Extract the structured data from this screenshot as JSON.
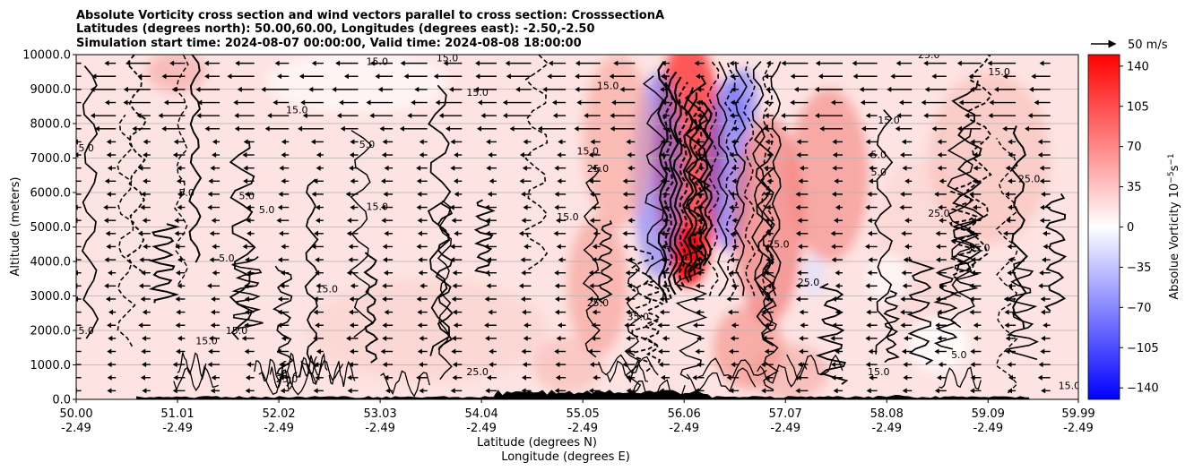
{
  "chart_data": {
    "type": "heatmap",
    "title_lines": [
      "Absolute Vorticity cross section and wind vectors parallel to cross section: CrosssectionA",
      "Latitudes (degrees north): 50.00,60.00, Longitudes (degrees east): -2.50,-2.50",
      "Simulation start time: 2024-08-07 00:00:00, Valid time: 2024-08-08 18:00:00"
    ],
    "xlabel_lines": [
      "Latitude (degrees N)",
      "Longitude (degrees E)"
    ],
    "ylabel": "Altitude (meters)",
    "x_ticks": [
      {
        "lat": "50.00",
        "lon": "-2.49",
        "value": 50.0
      },
      {
        "lat": "51.01",
        "lon": "-2.49",
        "value": 51.01
      },
      {
        "lat": "52.02",
        "lon": "-2.49",
        "value": 52.02
      },
      {
        "lat": "53.03",
        "lon": "-2.49",
        "value": 53.03
      },
      {
        "lat": "54.04",
        "lon": "-2.49",
        "value": 54.04
      },
      {
        "lat": "55.05",
        "lon": "-2.49",
        "value": 55.05
      },
      {
        "lat": "56.06",
        "lon": "-2.49",
        "value": 56.06
      },
      {
        "lat": "57.07",
        "lon": "-2.49",
        "value": 57.07
      },
      {
        "lat": "58.08",
        "lon": "-2.49",
        "value": 58.08
      },
      {
        "lat": "59.09",
        "lon": "-2.49",
        "value": 59.09
      },
      {
        "lat": "59.99",
        "lon": "-2.49",
        "value": 59.99
      }
    ],
    "xlim": [
      50.0,
      59.99
    ],
    "y_ticks": [
      "0.0",
      "1000.0",
      "2000.0",
      "3000.0",
      "4000.0",
      "5000.0",
      "6000.0",
      "7000.0",
      "8000.0",
      "9000.0",
      "10000.0"
    ],
    "ylim": [
      0,
      10000
    ],
    "grid": "horizontal",
    "colorbar": {
      "label": "Absolue Vorticity 10$^{-5}$s$^{-1}$",
      "label_main": "Absolue Vorticity 10",
      "label_exp1": "−5",
      "label_mid": "s",
      "label_exp2": "−1",
      "ticks": [
        "140",
        "105",
        "70",
        "35",
        "0",
        "−35",
        "−70",
        "−105",
        "−140"
      ],
      "range": [
        -150,
        150
      ],
      "colormap": "bwr",
      "colors": {
        "low": "#0000ff",
        "mid": "#ffffff",
        "high": "#ff0000"
      }
    },
    "quiver_key": {
      "label": "50 m/s",
      "speed": 50
    },
    "contour_labels": [
      {
        "text": "5.0",
        "x": 50.1,
        "y": 7200
      },
      {
        "text": "15.0",
        "x": 51.3,
        "y": 1600
      },
      {
        "text": "5.0",
        "x": 51.1,
        "y": 5900
      },
      {
        "text": "5.0",
        "x": 51.5,
        "y": 4000
      },
      {
        "text": "5.0",
        "x": 51.7,
        "y": 5800
      },
      {
        "text": "15.0",
        "x": 51.6,
        "y": 1900
      },
      {
        "text": "5.0",
        "x": 51.9,
        "y": 5400
      },
      {
        "text": "15.0",
        "x": 52.2,
        "y": 8300
      },
      {
        "text": "5.0",
        "x": 52.9,
        "y": 7300
      },
      {
        "text": "15.0",
        "x": 53.0,
        "y": 5500
      },
      {
        "text": "15.0",
        "x": 52.5,
        "y": 3100
      },
      {
        "text": "15.0",
        "x": 53.0,
        "y": 9700
      },
      {
        "text": "15.0",
        "x": 54.0,
        "y": 8800
      },
      {
        "text": "25.0",
        "x": 52.1,
        "y": 500
      },
      {
        "text": "25.0",
        "x": 54.0,
        "y": 700
      },
      {
        "text": "25.0",
        "x": 55.2,
        "y": 2700
      },
      {
        "text": "35.0",
        "x": 55.6,
        "y": 2300
      },
      {
        "text": "25.0",
        "x": 55.2,
        "y": 6600
      },
      {
        "text": "15.0",
        "x": 55.1,
        "y": 7100
      },
      {
        "text": "15.0",
        "x": 54.9,
        "y": 5200
      },
      {
        "text": "15.0",
        "x": 55.3,
        "y": 9000
      },
      {
        "text": "25.0",
        "x": 57.0,
        "y": 4400
      },
      {
        "text": "25.0",
        "x": 58.6,
        "y": 5300
      },
      {
        "text": "25.0",
        "x": 57.3,
        "y": 3300
      },
      {
        "text": "15.0",
        "x": 59.0,
        "y": 4300
      },
      {
        "text": "15.0",
        "x": 59.2,
        "y": 9400
      },
      {
        "text": "15.0",
        "x": 58.1,
        "y": 8000
      },
      {
        "text": "5.0",
        "x": 58.0,
        "y": 7000
      },
      {
        "text": "5.0",
        "x": 58.0,
        "y": 6500
      },
      {
        "text": "15.0",
        "x": 58.0,
        "y": 700
      },
      {
        "text": "5.0",
        "x": 58.8,
        "y": 1200
      },
      {
        "text": "15.0",
        "x": 59.9,
        "y": 300
      },
      {
        "text": "5.0",
        "x": 50.1,
        "y": 1900
      },
      {
        "text": "15.0",
        "x": 53.7,
        "y": 9800
      },
      {
        "text": "25.0",
        "x": 58.5,
        "y": 9900
      },
      {
        "text": "25.0",
        "x": 59.5,
        "y": 6300
      }
    ]
  }
}
